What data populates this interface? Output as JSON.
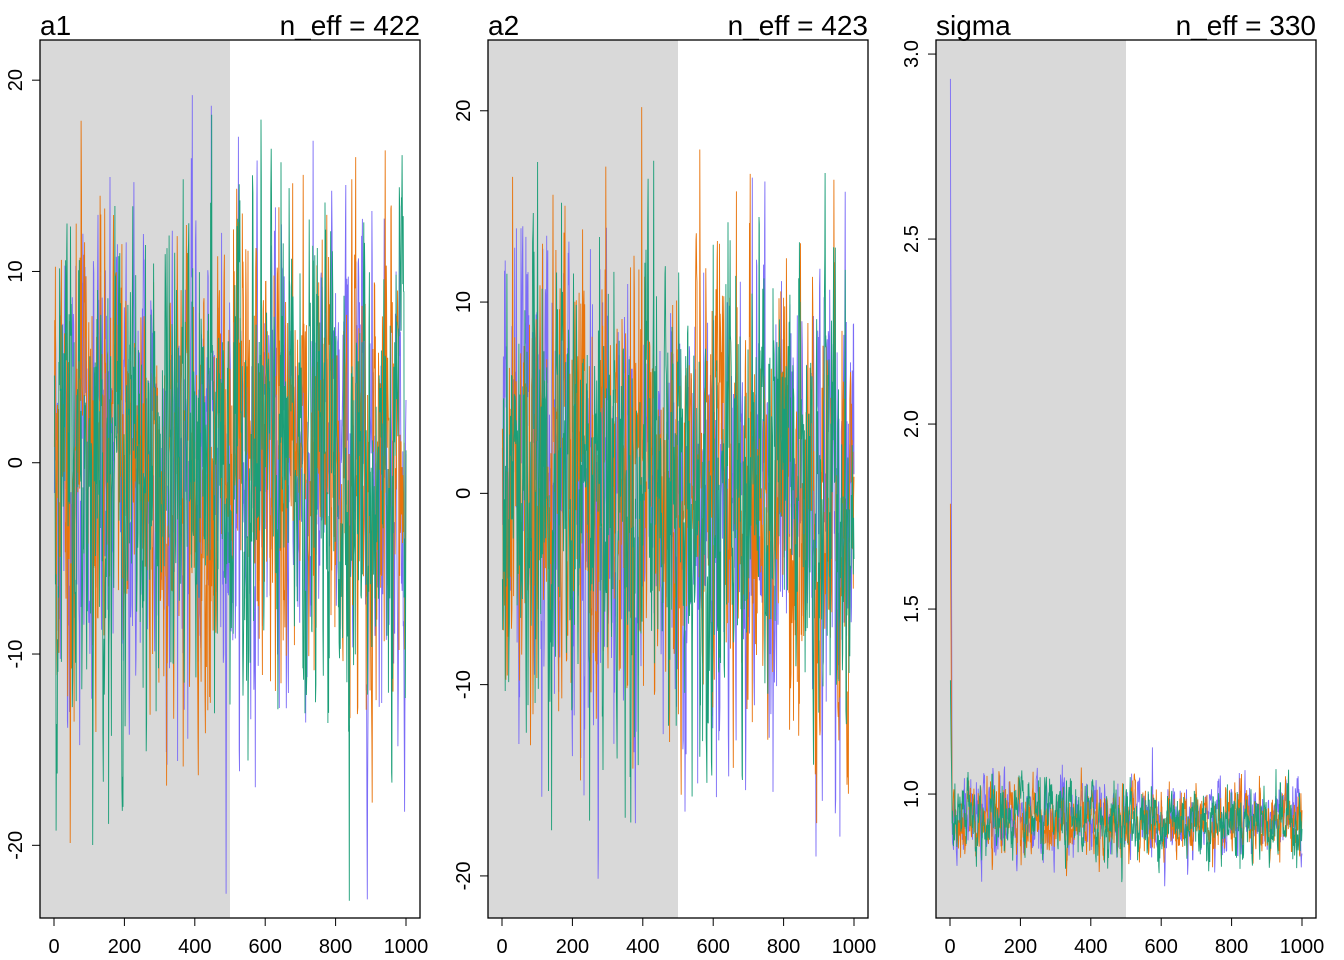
{
  "chart_data": [
    {
      "type": "line",
      "title": "a1",
      "annotation": "n_eff = 422",
      "xlim": [
        0,
        1000
      ],
      "ylim": [
        -23.8,
        22.1
      ],
      "xticks": [
        0,
        200,
        400,
        600,
        800,
        1000
      ],
      "yticks": [
        -20,
        -10,
        0,
        10,
        20
      ],
      "warmup_end": 500,
      "series_center": 0,
      "series_spread": 6,
      "grid": false
    },
    {
      "type": "line",
      "title": "a2",
      "annotation": "n_eff = 423",
      "xlim": [
        0,
        1000
      ],
      "ylim": [
        -22.2,
        23.7
      ],
      "xticks": [
        0,
        200,
        400,
        600,
        800,
        1000
      ],
      "yticks": [
        -20,
        -10,
        0,
        10,
        20
      ],
      "warmup_end": 500,
      "series_center": 0,
      "series_spread": 6,
      "grid": false
    },
    {
      "type": "line",
      "title": "sigma",
      "annotation": "n_eff = 330",
      "xlim": [
        0,
        1000
      ],
      "ylim": [
        0.665,
        3.038
      ],
      "xticks": [
        0,
        200,
        400,
        600,
        800,
        1000
      ],
      "yticks": [
        "1.0",
        "1.5",
        "2.0",
        "2.5",
        "3.0"
      ],
      "warmup_end": 500,
      "series_center": 0.93,
      "series_spread": 0.05,
      "initial_values": [
        2.95,
        1.78,
        1.3
      ],
      "grid": false
    }
  ],
  "chains": [
    {
      "color": "#7b6cf7"
    },
    {
      "color": "#e8740c"
    },
    {
      "color": "#1b9e77"
    }
  ],
  "warmup_color": "#d9d9d9"
}
